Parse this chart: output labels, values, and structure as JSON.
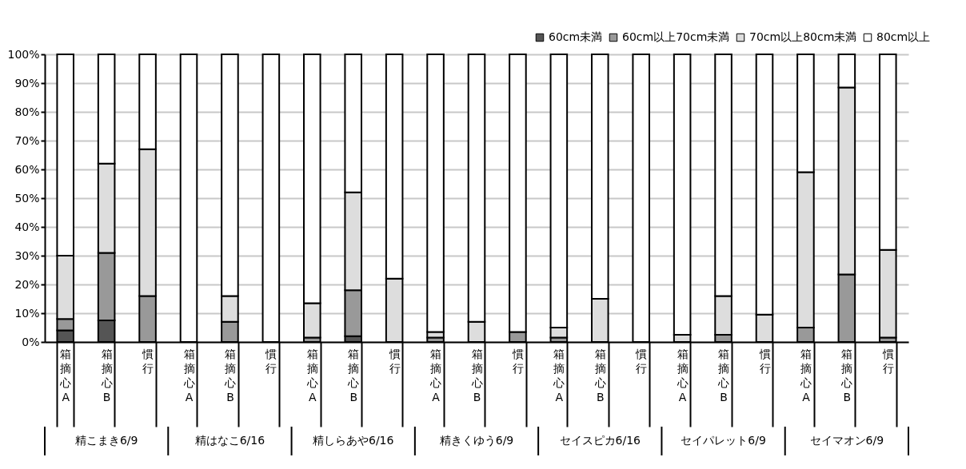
{
  "chart_data": {
    "type": "bar",
    "stacked": true,
    "categories": [
      "箱摘心A",
      "箱摘心B",
      "慣行",
      "箱摘心A",
      "箱摘心B",
      "慣行",
      "箱摘心A",
      "箱摘心B",
      "慣行",
      "箱摘心A",
      "箱摘心B",
      "慣行",
      "箱摘心A",
      "箱摘心B",
      "慣行",
      "箱摘心A",
      "箱摘心B",
      "慣行",
      "箱摘心A",
      "箱摘心B",
      "慣行"
    ],
    "series": [
      {
        "name": "60cm未満",
        "color": "#555555",
        "values": [
          4,
          7.5,
          0,
          0,
          0,
          0,
          0,
          2,
          0,
          0,
          0,
          0,
          0,
          0,
          0,
          0,
          0,
          0,
          0,
          0,
          0
        ]
      },
      {
        "name": "60cm以上70cm未満",
        "color": "#999999",
        "values": [
          4,
          23.5,
          16,
          0,
          7,
          0,
          1.5,
          16,
          0,
          1.5,
          0,
          3.5,
          1.5,
          0,
          0,
          0,
          2.5,
          0,
          5,
          23.5,
          1.5
        ]
      },
      {
        "name": "70cm以上80cm未満",
        "color": "#dddddd",
        "values": [
          22,
          31,
          51,
          0,
          9,
          0,
          12,
          34,
          22,
          2,
          7,
          0,
          3.5,
          15,
          0,
          2.5,
          13.5,
          9.5,
          54,
          65,
          30.5
        ]
      },
      {
        "name": "80cm以上",
        "color": "#ffffff",
        "values": [
          70,
          38,
          33,
          100,
          84,
          100,
          86.5,
          48,
          78,
          96.5,
          93,
          96.5,
          95,
          85,
          100,
          97.5,
          84,
          90.5,
          41,
          11.5,
          68
        ]
      }
    ],
    "ylim": [
      0,
      100
    ],
    "yticks": [
      {
        "value": 0,
        "label": "0%"
      },
      {
        "value": 10,
        "label": "10%"
      },
      {
        "value": 20,
        "label": "20%"
      },
      {
        "value": 30,
        "label": "30%"
      },
      {
        "value": 40,
        "label": "40%"
      },
      {
        "value": 50,
        "label": "50%"
      },
      {
        "value": 60,
        "label": "60%"
      },
      {
        "value": 70,
        "label": "70%"
      },
      {
        "value": 80,
        "label": "80%"
      },
      {
        "value": 90,
        "label": "90%"
      },
      {
        "value": 100,
        "label": "100%"
      }
    ],
    "grid": "y",
    "legend": "top right",
    "annotations": [
      "精こまき6/9",
      "精はなこ6/16",
      "精しらあや6/16",
      "精きくゆう6/9",
      "セイスピカ6/16",
      "セイパレット6/9",
      "セイマオン6/9"
    ]
  }
}
